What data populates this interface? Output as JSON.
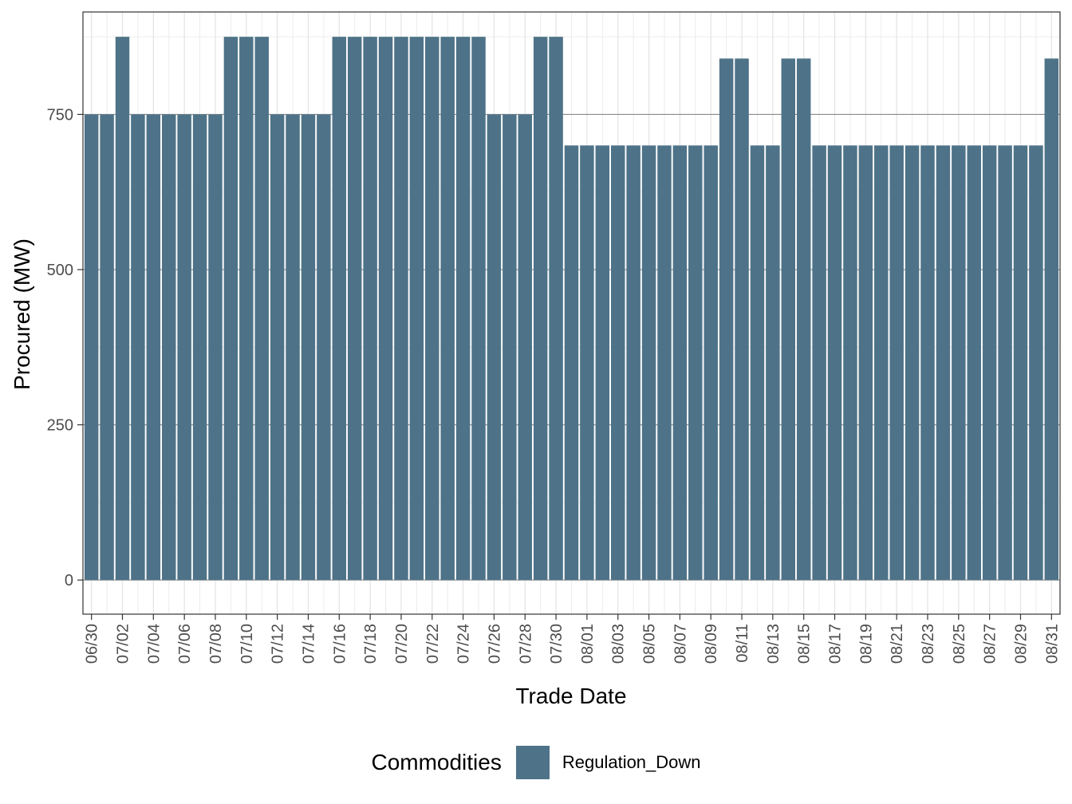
{
  "chart_data": {
    "type": "bar",
    "xlabel": "Trade Date",
    "ylabel": "Procured (MW)",
    "ylim": [
      -55,
      915
    ],
    "yticks": [
      0,
      250,
      500,
      750
    ],
    "grid": true,
    "legend_position": "bottom",
    "legend_title": "Commodities",
    "bar_color": "#4e7388",
    "categories": [
      "06/30",
      "07/01",
      "07/02",
      "07/03",
      "07/04",
      "07/05",
      "07/06",
      "07/07",
      "07/08",
      "07/09",
      "07/10",
      "07/11",
      "07/12",
      "07/13",
      "07/14",
      "07/15",
      "07/16",
      "07/17",
      "07/18",
      "07/19",
      "07/20",
      "07/21",
      "07/22",
      "07/23",
      "07/24",
      "07/25",
      "07/26",
      "07/27",
      "07/28",
      "07/29",
      "07/30",
      "07/31",
      "08/01",
      "08/02",
      "08/03",
      "08/04",
      "08/05",
      "08/06",
      "08/07",
      "08/08",
      "08/09",
      "08/10",
      "08/11",
      "08/12",
      "08/13",
      "08/14",
      "08/15",
      "08/16",
      "08/17",
      "08/18",
      "08/19",
      "08/20",
      "08/21",
      "08/22",
      "08/23",
      "08/24",
      "08/25",
      "08/26",
      "08/27",
      "08/28",
      "08/29",
      "08/30",
      "08/31"
    ],
    "tick_labels": [
      "06/30",
      "07/02",
      "07/04",
      "07/06",
      "07/08",
      "07/10",
      "07/12",
      "07/14",
      "07/16",
      "07/18",
      "07/20",
      "07/22",
      "07/24",
      "07/26",
      "07/28",
      "07/30",
      "08/01",
      "08/03",
      "08/05",
      "08/07",
      "08/09",
      "08/11",
      "08/13",
      "08/15",
      "08/17",
      "08/19",
      "08/21",
      "08/23",
      "08/25",
      "08/27",
      "08/29",
      "08/31"
    ],
    "series": [
      {
        "name": "Regulation_Down",
        "values": [
          750,
          750,
          875,
          750,
          750,
          750,
          750,
          750,
          750,
          875,
          875,
          875,
          750,
          750,
          750,
          750,
          875,
          875,
          875,
          875,
          875,
          875,
          875,
          875,
          875,
          875,
          750,
          750,
          750,
          875,
          875,
          700,
          700,
          700,
          700,
          700,
          700,
          700,
          700,
          700,
          700,
          840,
          840,
          700,
          700,
          840,
          840,
          700,
          700,
          700,
          700,
          700,
          700,
          700,
          700,
          700,
          700,
          700,
          700,
          700,
          700,
          700,
          840
        ]
      }
    ]
  }
}
